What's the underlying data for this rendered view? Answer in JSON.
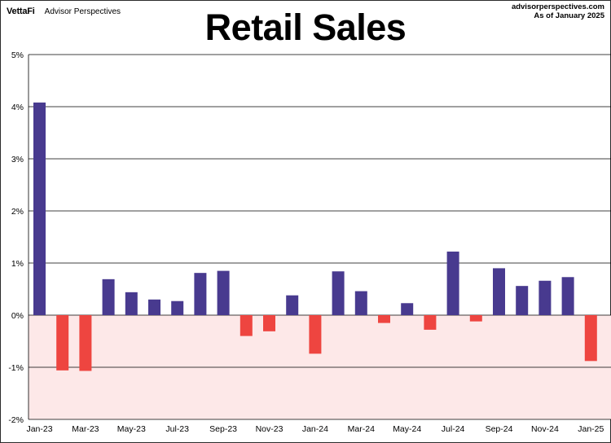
{
  "header": {
    "logo_text": "VettaFi",
    "brand_name": "Advisor Perspectives",
    "source_line1": "advisorperspectives.com",
    "source_line2": "As of January 2025",
    "title": "Retail Sales"
  },
  "colors": {
    "positive": "#483a8f",
    "negative": "#ee4540",
    "negative_zone": "#fde8e8",
    "grid": "#000000"
  },
  "chart_data": {
    "type": "bar",
    "title": "Retail Sales",
    "xlabel": "",
    "ylabel": "",
    "ylim": [
      -2,
      5
    ],
    "y_ticks": [
      -2,
      -1,
      0,
      1,
      2,
      3,
      4,
      5
    ],
    "y_tick_labels": [
      "-2%",
      "-1%",
      "0%",
      "1%",
      "2%",
      "3%",
      "4%",
      "5%"
    ],
    "grid": "horizontal",
    "categories": [
      "Jan-23",
      "Feb-23",
      "Mar-23",
      "Apr-23",
      "May-23",
      "Jun-23",
      "Jul-23",
      "Aug-23",
      "Sep-23",
      "Oct-23",
      "Nov-23",
      "Dec-23",
      "Jan-24",
      "Feb-24",
      "Mar-24",
      "Apr-24",
      "May-24",
      "Jun-24",
      "Jul-24",
      "Aug-24",
      "Sep-24",
      "Oct-24",
      "Nov-24",
      "Dec-24",
      "Jan-25"
    ],
    "x_tick_labels": [
      "Jan-23",
      "Mar-23",
      "May-23",
      "Jul-23",
      "Sep-23",
      "Nov-23",
      "Jan-24",
      "Mar-24",
      "May-24",
      "Jul-24",
      "Sep-24",
      "Nov-24",
      "Jan-25"
    ],
    "values": [
      4.08,
      -1.06,
      -1.07,
      0.69,
      0.44,
      0.3,
      0.27,
      0.81,
      0.85,
      -0.4,
      -0.31,
      0.38,
      -0.74,
      0.84,
      0.46,
      -0.15,
      0.23,
      -0.28,
      1.22,
      -0.12,
      0.9,
      0.56,
      0.66,
      0.73,
      -0.88
    ]
  }
}
